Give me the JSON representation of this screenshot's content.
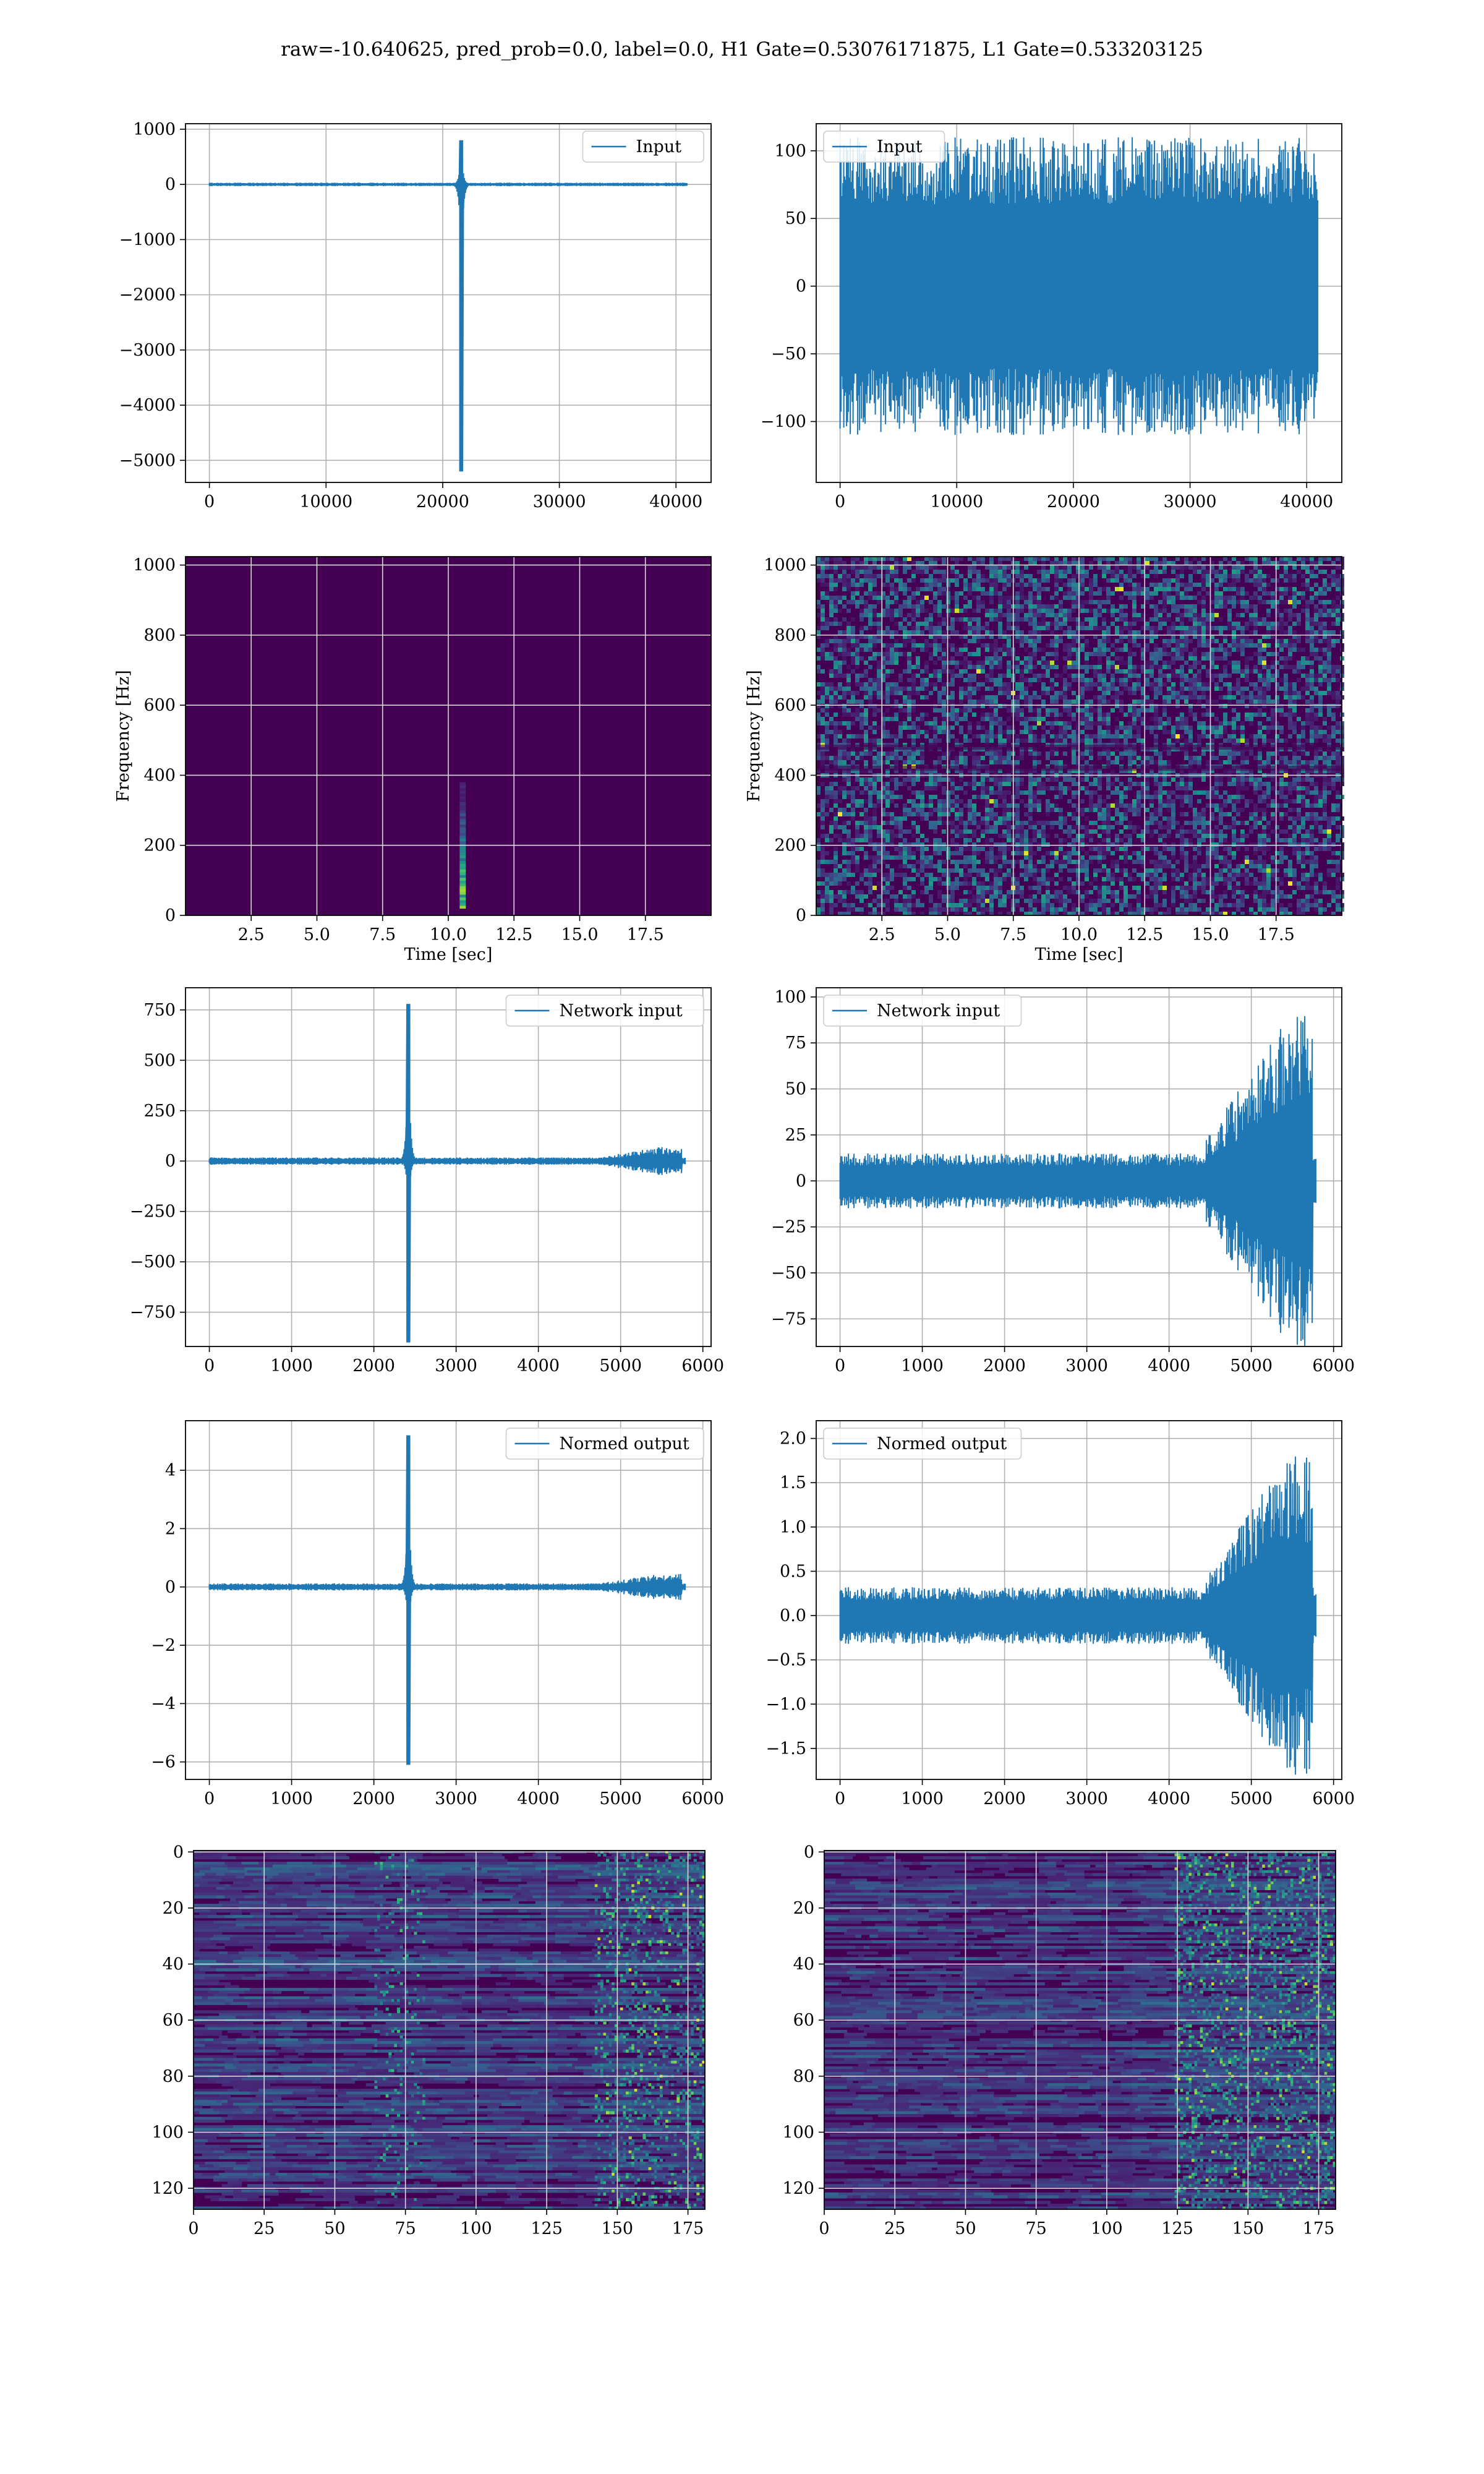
{
  "suptitle": "raw=-10.640625, pred_prob=0.0, label=0.0, H1 Gate=0.53076171875, L1 Gate=0.533203125",
  "colors": {
    "line": "#1f77b4",
    "grid": "#b0b0b0",
    "viridis_low": "#440154",
    "viridis_mid": "#21918c",
    "viridis_high": "#fde725"
  },
  "chart_data": [
    {
      "id": "input-h1",
      "type": "line",
      "legend": "Input",
      "legend_loc": "upper right",
      "xlim": [
        -2048,
        43008
      ],
      "ylim": [
        -5400,
        1100
      ],
      "xticks": [
        0,
        10000,
        20000,
        30000,
        40000
      ],
      "yticks": [
        1000,
        0,
        -1000,
        -2000,
        -3000,
        -4000,
        -5000
      ],
      "x_extent": [
        0,
        40960
      ],
      "noise_amp": 30,
      "glitch": {
        "x": 21600,
        "min": -5200,
        "max": 800
      }
    },
    {
      "id": "input-l1",
      "type": "line",
      "legend": "Input",
      "legend_loc": "upper left",
      "xlim": [
        -2048,
        43008
      ],
      "ylim": [
        -145,
        120
      ],
      "xticks": [
        0,
        10000,
        20000,
        30000,
        40000
      ],
      "yticks": [
        100,
        50,
        0,
        -50,
        -100
      ],
      "x_extent": [
        0,
        40960
      ],
      "noise_amp": 110,
      "glitch": null
    },
    {
      "id": "spectrogram-h1",
      "type": "heatmap",
      "xlabel": "Time [sec]",
      "ylabel": "Frequency [Hz]",
      "xlim": [
        0,
        20
      ],
      "ylim": [
        0,
        1024
      ],
      "xticks": [
        2.5,
        5.0,
        7.5,
        10.0,
        12.5,
        15.0,
        17.5
      ],
      "yticks": [
        0,
        200,
        400,
        600,
        800,
        1000
      ],
      "burst": {
        "t": 10.55,
        "f_min": 20,
        "f_max": 380
      },
      "noise": false
    },
    {
      "id": "spectrogram-l1",
      "type": "heatmap",
      "xlabel": "Time [sec]",
      "ylabel": "Frequency [Hz]",
      "xlim": [
        0,
        20
      ],
      "ylim": [
        0,
        1024
      ],
      "xticks": [
        2.5,
        5.0,
        7.5,
        10.0,
        12.5,
        15.0,
        17.5
      ],
      "yticks": [
        0,
        200,
        400,
        600,
        800,
        1000
      ],
      "burst": null,
      "noise": true
    },
    {
      "id": "network-input-h1",
      "type": "line",
      "legend": "Network input",
      "legend_loc": "upper right",
      "xlim": [
        -290,
        6100
      ],
      "ylim": [
        -920,
        860
      ],
      "xticks": [
        0,
        1000,
        2000,
        3000,
        4000,
        5000,
        6000
      ],
      "yticks": [
        750,
        500,
        250,
        0,
        -250,
        -500,
        -750
      ],
      "x_extent": [
        0,
        5790
      ],
      "noise_amp": 18,
      "glitch": {
        "x": 2420,
        "min": -900,
        "max": 780
      },
      "ramp": {
        "start": 4700,
        "end": 5750,
        "amp": 70
      }
    },
    {
      "id": "network-input-l1",
      "type": "line",
      "legend": "Network input",
      "legend_loc": "upper left",
      "xlim": [
        -290,
        6100
      ],
      "ylim": [
        -90,
        105
      ],
      "xticks": [
        0,
        1000,
        2000,
        3000,
        4000,
        5000,
        6000
      ],
      "yticks": [
        100,
        75,
        50,
        25,
        0,
        -25,
        -50,
        -75
      ],
      "x_extent": [
        0,
        5790
      ],
      "noise_amp": 15,
      "glitch": null,
      "ramp": {
        "start": 4450,
        "end": 5750,
        "amp": 90
      }
    },
    {
      "id": "normed-output-h1",
      "type": "line",
      "legend": "Normed output",
      "legend_loc": "upper right",
      "xlim": [
        -290,
        6100
      ],
      "ylim": [
        -6.6,
        5.7
      ],
      "xticks": [
        0,
        1000,
        2000,
        3000,
        4000,
        5000,
        6000
      ],
      "yticks": [
        4,
        2,
        0,
        -2,
        -4,
        -6
      ],
      "x_extent": [
        0,
        5790
      ],
      "noise_amp": 0.12,
      "glitch": {
        "x": 2420,
        "min": -6.1,
        "max": 5.2
      },
      "ramp": {
        "start": 4700,
        "end": 5750,
        "amp": 0.45
      }
    },
    {
      "id": "normed-output-l1",
      "type": "line",
      "legend": "Normed output",
      "legend_loc": "upper left",
      "xlim": [
        -290,
        6100
      ],
      "ylim": [
        -1.85,
        2.2
      ],
      "xticks": [
        0,
        1000,
        2000,
        3000,
        4000,
        5000,
        6000
      ],
      "yticks": [
        2.0,
        1.5,
        1.0,
        0.5,
        0.0,
        -0.5,
        -1.0,
        -1.5
      ],
      "x_extent": [
        0,
        5790
      ],
      "noise_amp": 0.32,
      "glitch": null,
      "ramp": {
        "start": 4450,
        "end": 5750,
        "amp": 1.8
      }
    },
    {
      "id": "features-h1",
      "type": "heatmap",
      "xlim": [
        0,
        181
      ],
      "ylim": [
        127.5,
        -0.5
      ],
      "xticks": [
        0,
        25,
        50,
        75,
        100,
        125,
        150,
        175
      ],
      "yticks": [
        0,
        20,
        40,
        60,
        80,
        100,
        120
      ],
      "activity": "scattered"
    },
    {
      "id": "features-l1",
      "type": "heatmap",
      "xlim": [
        0,
        181
      ],
      "ylim": [
        127.5,
        -0.5
      ],
      "xticks": [
        0,
        25,
        50,
        75,
        100,
        125,
        150,
        175
      ],
      "yticks": [
        0,
        20,
        40,
        60,
        80,
        100,
        120
      ],
      "activity": "late"
    }
  ]
}
